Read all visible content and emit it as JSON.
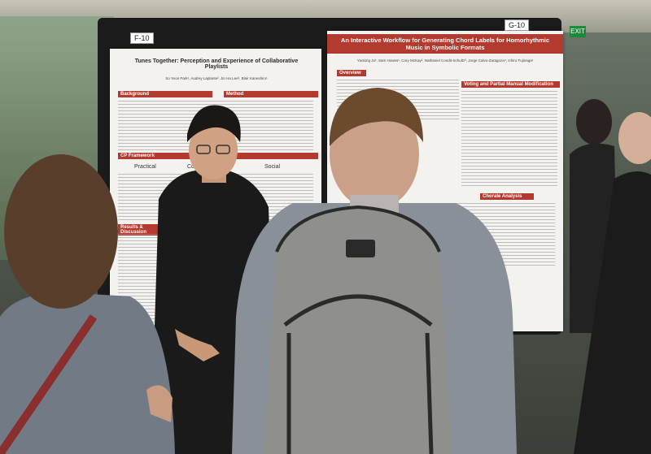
{
  "poster_left": {
    "tag": "F-10",
    "title": "Tunes Together: Perception and Experience of Collaborative Playlists",
    "authors": "So Yeon Park¹, Audrey Laplante², Jin Ha Lee³, Blair Kaneshiro¹",
    "sections": [
      "Background",
      "Method",
      "CP Framework",
      "Results & Discussion"
    ],
    "framework_columns": [
      "Practical",
      "Cognitive",
      "Social"
    ]
  },
  "poster_right": {
    "tag": "G-10",
    "title": "An Interactive Workflow for Generating Chord Labels for Homorhythmic Music in Symbolic Formats",
    "authors": "Yaolong Ju¹, Sam Howes¹, Cory McKay², Nathaniel Condit-Schultz³, Jorge Calvo-Zaragoza⁴, Ichiro Fujinaga¹",
    "sections": [
      "Overview",
      "Voting and Partial Manual Modification",
      "Chorale Analysis"
    ]
  },
  "signage": {
    "exit": "EXIT"
  },
  "colors": {
    "poster_accent": "#b23a2e",
    "board": "#1b1b1b"
  }
}
